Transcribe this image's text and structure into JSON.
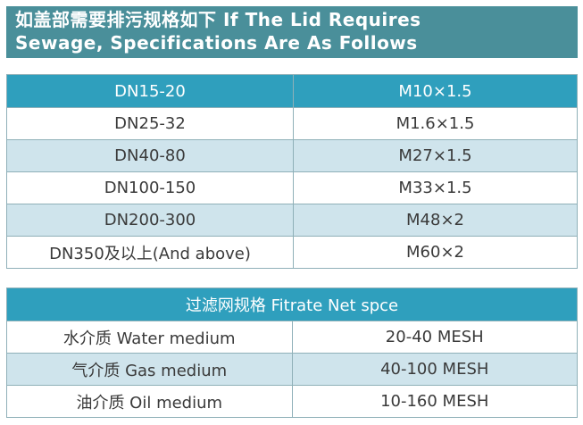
{
  "header": {
    "line1": "如盖部需要排污规格如下 If The Lid Requires",
    "line2": "Sewage, Specifications Are As Follows"
  },
  "table1": {
    "rows": [
      [
        "DN15-20",
        "M10×1.5"
      ],
      [
        "DN25-32",
        "M1.6×1.5"
      ],
      [
        "DN40-80",
        "M27×1.5"
      ],
      [
        "DN100-150",
        "M33×1.5"
      ],
      [
        "DN200-300",
        "M48×2"
      ],
      [
        "DN350及以上(And above)",
        "M60×2"
      ]
    ]
  },
  "table2": {
    "title": "过滤网规格 Fitrate Net spce",
    "rows": [
      [
        "水介质 Water medium",
        "20-40  MESH"
      ],
      [
        "气介质 Gas medium",
        "40-100  MESH"
      ],
      [
        "油介质 Oil medium",
        "10-160  MESH"
      ]
    ]
  },
  "colors": {
    "banner": "#4a8f9a",
    "header_row": "#2f9fbd",
    "light_row": "#cfe4ec",
    "border": "#8fb0b8"
  }
}
